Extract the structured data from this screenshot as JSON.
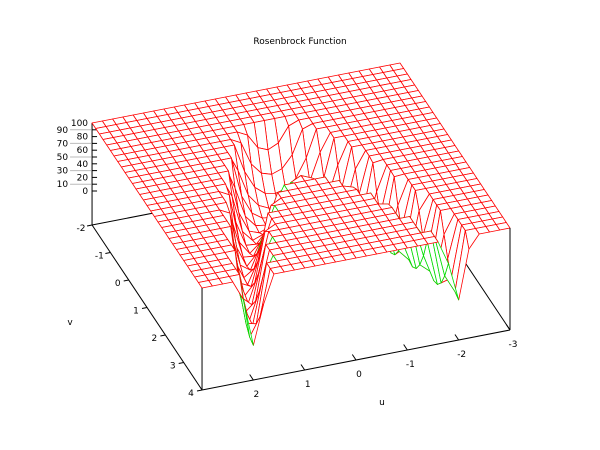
{
  "chart_data": {
    "type": "surface",
    "title": "Rosenbrock Function",
    "xlabel": "u",
    "ylabel": "v",
    "zlabel": "",
    "xlim": [
      -3,
      3
    ],
    "ylim": [
      -2,
      4
    ],
    "zlim": [
      0,
      100
    ],
    "x_ticks": [
      "2",
      "1",
      "0",
      "-1",
      "-2",
      "-3"
    ],
    "x_tick_values": [
      2,
      1,
      0,
      -1,
      -2,
      -3
    ],
    "y_ticks": [
      "-2",
      "-1",
      "0",
      "1",
      "2",
      "3",
      "4"
    ],
    "y_tick_values": [
      -2,
      -1,
      0,
      1,
      2,
      3,
      4
    ],
    "z_ticks": [
      "0",
      "10",
      "20",
      "30",
      "40",
      "50",
      "60",
      "70",
      "80",
      "90",
      "100"
    ],
    "z_tick_values": [
      0,
      10,
      20,
      30,
      40,
      50,
      60,
      70,
      80,
      90,
      100
    ],
    "isosamples": 31,
    "style": "hidden3d wireframe",
    "colors": {
      "top_surface": "#ff0000",
      "bottom_surface": "#00dd00",
      "axes": "#000000"
    },
    "grid": false,
    "legend": "none"
  }
}
